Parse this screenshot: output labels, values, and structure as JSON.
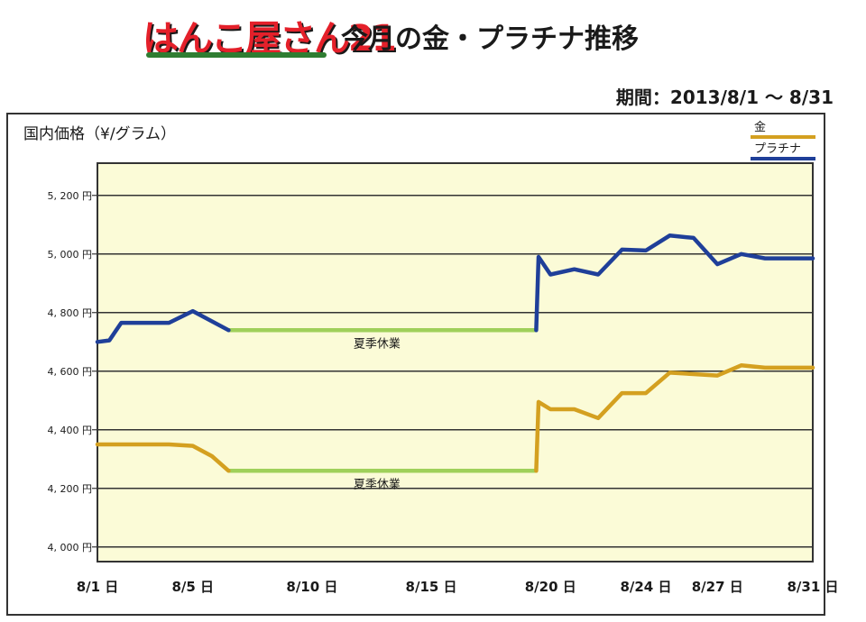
{
  "header": {
    "logo_text": "はんこ屋さん21",
    "title": "今月の金・プラチナ推移",
    "period": "期間：2013/8/1 〜 8/31"
  },
  "chart_data": {
    "type": "line",
    "title": "今月の金・プラチナ推移",
    "ylabel": "国内価格（¥/グラム）",
    "xlabel": "",
    "ylim": [
      3950,
      5310
    ],
    "yticks": [
      4000,
      4200,
      4400,
      4600,
      4800,
      5000,
      5200
    ],
    "ytick_labels": [
      "4, 000 円",
      "4, 200 円",
      "4, 400 円",
      "4, 600 円",
      "4, 800 円",
      "5, 000 円",
      "5, 200 円"
    ],
    "xlim": [
      1,
      31
    ],
    "xticks": [
      1,
      5,
      10,
      15,
      20,
      24,
      27,
      31
    ],
    "xtick_labels": [
      "8/1 日",
      "8/5 日",
      "8/10 日",
      "8/15 日",
      "8/20 日",
      "8/24 日",
      "8/27 日",
      "8/31 日"
    ],
    "grid": true,
    "legend_position": "top-right",
    "colors": {
      "gold": "#d4a020",
      "platinum": "#1f3f99",
      "holiday": "#9fd05a",
      "plot_bg": "#fbfbd7"
    },
    "series": [
      {
        "name": "金",
        "color": "#d4a020",
        "x": [
          1,
          2,
          3,
          4,
          5,
          5.8,
          6.5
        ],
        "y": [
          4350,
          4350,
          4350,
          4350,
          4345,
          4310,
          4260
        ]
      },
      {
        "name": "金",
        "color": "#d4a020",
        "x": [
          19.4,
          19.5,
          20,
          21,
          22,
          23,
          24,
          25,
          26,
          27,
          28,
          29,
          30,
          31
        ],
        "y": [
          4260,
          4495,
          4470,
          4470,
          4440,
          4525,
          4525,
          4595,
          4590,
          4585,
          4620,
          4612,
          4612,
          4612
        ]
      },
      {
        "name": "プラチナ",
        "color": "#1f3f99",
        "x": [
          1,
          1.5,
          2,
          3,
          4,
          5,
          6.5
        ],
        "y": [
          4700,
          4705,
          4765,
          4765,
          4765,
          4805,
          4740
        ]
      },
      {
        "name": "プラチナ",
        "color": "#1f3f99",
        "x": [
          19.4,
          19.5,
          20,
          21,
          22,
          23,
          24,
          25,
          26,
          27,
          28,
          29,
          30,
          31
        ],
        "y": [
          4740,
          4990,
          4930,
          4948,
          4930,
          5015,
          5012,
          5063,
          5055,
          4965,
          5000,
          4985,
          4985,
          4985
        ]
      }
    ],
    "holiday_segments": [
      {
        "label": "夏季休業",
        "x_start": 6.5,
        "x_end": 19.4,
        "y": 4740
      },
      {
        "label": "夏季休業",
        "x_start": 6.5,
        "x_end": 19.4,
        "y": 4260
      }
    ],
    "legend": [
      {
        "label": "金",
        "color": "#d4a020"
      },
      {
        "label": "プラチナ",
        "color": "#1f3f99"
      }
    ]
  }
}
